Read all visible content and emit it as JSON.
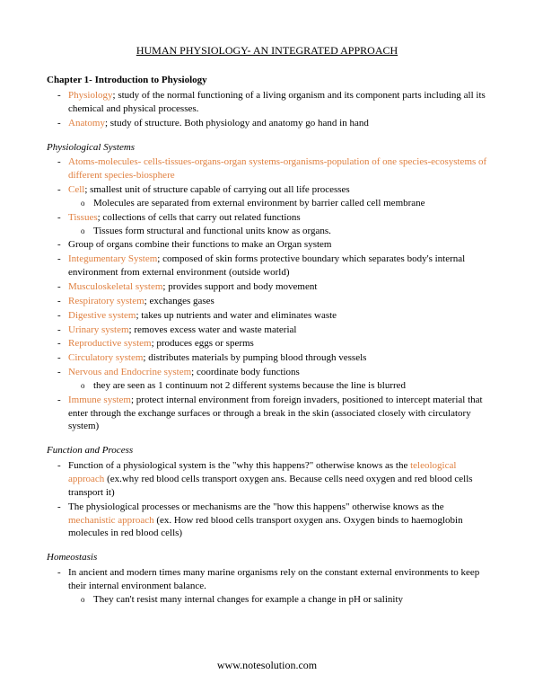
{
  "colors": {
    "term": "#e08040",
    "text": "#000000",
    "bg": "#ffffff"
  },
  "title": "HUMAN PHYSIOLOGY- AN INTEGRATED APPROACH",
  "chapter": "Chapter 1- Introduction to Physiology",
  "intro": [
    {
      "term": "Physiology",
      "text": "; study of the normal functioning of a living organism and its component parts including all its chemical and physical processes."
    },
    {
      "term": "Anatomy",
      "text": "; study of structure. Both physiology and anatomy go hand in hand"
    }
  ],
  "sec1": {
    "header": "Physiological Systems",
    "item1_term": "Atoms-molecules- cells-tissues-organs-organ systems-organisms-population of one species-ecosystems of different species-biosphere",
    "item2_term": "Cell",
    "item2_text": "; smallest unit of structure capable of carrying out all life processes",
    "item2_sub": "Molecules are separated from external environment by barrier called cell membrane",
    "item3_term": "Tissues",
    "item3_text": "; collections of cells that carry out related functions",
    "item3_sub": "Tissues form structural and functional units know as organs.",
    "item4_text": "Group of organs combine their functions to make an Organ system",
    "item5_term": "Integumentary System",
    "item5_text": "; composed of skin forms protective boundary which separates body's internal environment from external environment (outside world)",
    "item6_term": "Musculoskeletal system",
    "item6_text": "; provides support and body movement",
    "item7_term": "Respiratory system",
    "item7_text": "; exchanges gases",
    "item8_term": "Digestive system",
    "item8_text": "; takes up nutrients and water and eliminates waste",
    "item9_term": "Urinary system",
    "item9_text": "; removes excess water and waste material",
    "item10_term": "Reproductive system",
    "item10_text": "; produces eggs or sperms",
    "item11_term": "Circulatory system",
    "item11_text": "; distributes materials by pumping blood through vessels",
    "item12_term": "Nervous and Endocrine system",
    "item12_text": "; coordinate body functions",
    "item12_sub": "they are seen as 1 continuum not 2 different systems because the line is blurred",
    "item13_term": "Immune system",
    "item13_text": "; protect internal environment from foreign invaders, positioned to intercept material that enter through the exchange surfaces or through a break in the skin (associated closely with circulatory system)"
  },
  "sec2": {
    "header": "Function and Process",
    "item1_pre": "Function of a physiological system is the \"why this happens?\" otherwise knows as the ",
    "item1_term": "teleological approach",
    "item1_post": " (ex.why red blood cells transport oxygen ans. Because cells need oxygen and red blood cells transport it)",
    "item2_pre": "The physiological processes or mechanisms are the \"how this happens\" otherwise knows as the ",
    "item2_term": "mechanistic approach",
    "item2_post": " (ex. How red blood cells transport oxygen ans. Oxygen binds to haemoglobin molecules in red blood cells)"
  },
  "sec3": {
    "header": "Homeostasis",
    "item1_text": "In ancient and modern times many marine organisms rely on the constant external environments to keep their internal environment balance.",
    "item1_sub": "They can't resist many internal changes for example a change in pH or salinity"
  },
  "footer": "www.notesolution.com"
}
